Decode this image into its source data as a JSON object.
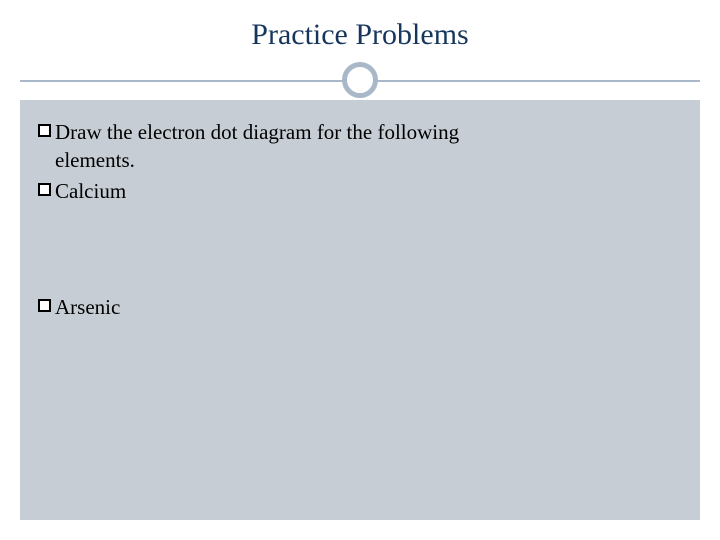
{
  "slide": {
    "title": "Practice Problems",
    "title_color": "#17365d",
    "title_fontsize": 30,
    "divider_color": "#a9b8c8",
    "circle_border_color": "#a9b8c8",
    "content_background": "#c6cdd4",
    "body_fontsize": 21,
    "body_color": "#000000",
    "items": [
      {
        "text": "Draw the electron dot diagram for the following",
        "continuation": "elements."
      },
      {
        "text": "Calcium"
      },
      {
        "text": "Arsenic"
      }
    ]
  }
}
